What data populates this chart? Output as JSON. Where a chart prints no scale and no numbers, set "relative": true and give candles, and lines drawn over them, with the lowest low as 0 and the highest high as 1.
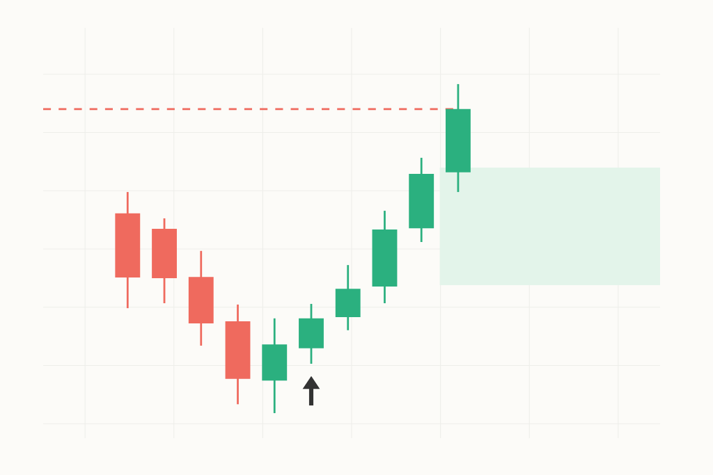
{
  "chart_data": {
    "type": "candlestick",
    "relative": true,
    "categories": [
      null,
      null,
      null,
      null,
      null,
      null,
      null,
      null,
      null,
      null
    ],
    "ohlc": [
      [
        0.607,
        0.672,
        0.319,
        0.412
      ],
      [
        0.56,
        0.592,
        0.334,
        0.41
      ],
      [
        0.414,
        0.493,
        0.205,
        0.273
      ],
      [
        0.279,
        0.33,
        0.027,
        0.104
      ],
      [
        0.099,
        0.288,
        0.0,
        0.209
      ],
      [
        0.197,
        0.332,
        0.15,
        0.288
      ],
      [
        0.292,
        0.45,
        0.252,
        0.378
      ],
      [
        0.385,
        0.615,
        0.334,
        0.558
      ],
      [
        0.562,
        0.776,
        0.52,
        0.727
      ],
      [
        0.732,
        1.0,
        0.672,
        0.924
      ]
    ],
    "colors": [
      "#ef6a5e",
      "#ef6a5e",
      "#ef6a5e",
      "#ef6a5e",
      "#2bb07f",
      "#2bb07f",
      "#2bb07f",
      "#2bb07f",
      "#2bb07f",
      "#2bb07f"
    ],
    "ref_lines": [
      {
        "axis": "y",
        "value": 0.924,
        "color": "#ef6a5e",
        "line_style": "dashed"
      }
    ],
    "bands": [
      {
        "axis": "y",
        "from": 0.389,
        "to": 0.746,
        "color": "#e3f4ea"
      }
    ],
    "grid": true
  }
}
